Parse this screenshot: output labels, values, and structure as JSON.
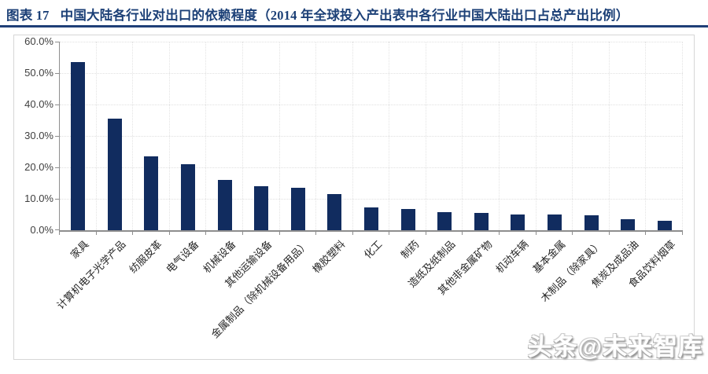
{
  "header": {
    "figure_label": "图表 17",
    "title": "中国大陆各行业对出口的依赖程度（2014 年全球投入产出表中各行业中国大陆出口占总产出比例）"
  },
  "watermark": {
    "text": "头条@未来智库"
  },
  "colors": {
    "bar": "#112C5F",
    "title_text": "#1C4077",
    "title_rule": "#1F3F77",
    "axis": "#8E8E8E",
    "grid": "#E0E0E0",
    "tick_label": "#3F3F3F"
  },
  "chart_data": {
    "type": "bar",
    "title": "中国大陆各行业对出口的依赖程度（2014 年全球投入产出表中各行业中国大陆出口占总产出比例）",
    "categories": [
      "家具",
      "计算机电子光学产品",
      "纺服皮革",
      "电气设备",
      "机械设备",
      "其他运输设备",
      "金属制品（除机械设备用品）",
      "橡胶塑料",
      "化工",
      "制药",
      "造纸及纸制品",
      "其他非金属矿物",
      "机动车辆",
      "基本金属",
      "木制品（除家具）",
      "焦炭及成品油",
      "食品饮料烟草"
    ],
    "values": [
      53.5,
      35.6,
      23.5,
      21.0,
      16.0,
      14.0,
      13.4,
      11.4,
      7.3,
      6.7,
      5.8,
      5.6,
      5.0,
      5.1,
      4.8,
      3.5,
      3.1
    ],
    "unit": "%",
    "xlabel": "",
    "ylabel": "",
    "ylim": [
      0,
      60
    ],
    "ytick_step": 10,
    "ytick_labels": [
      "0.0%",
      "10.0%",
      "20.0%",
      "30.0%",
      "40.0%",
      "50.0%",
      "60.0%"
    ],
    "grid": "dotted-both",
    "legend_position": "none",
    "bar_color": "#112C5F"
  }
}
